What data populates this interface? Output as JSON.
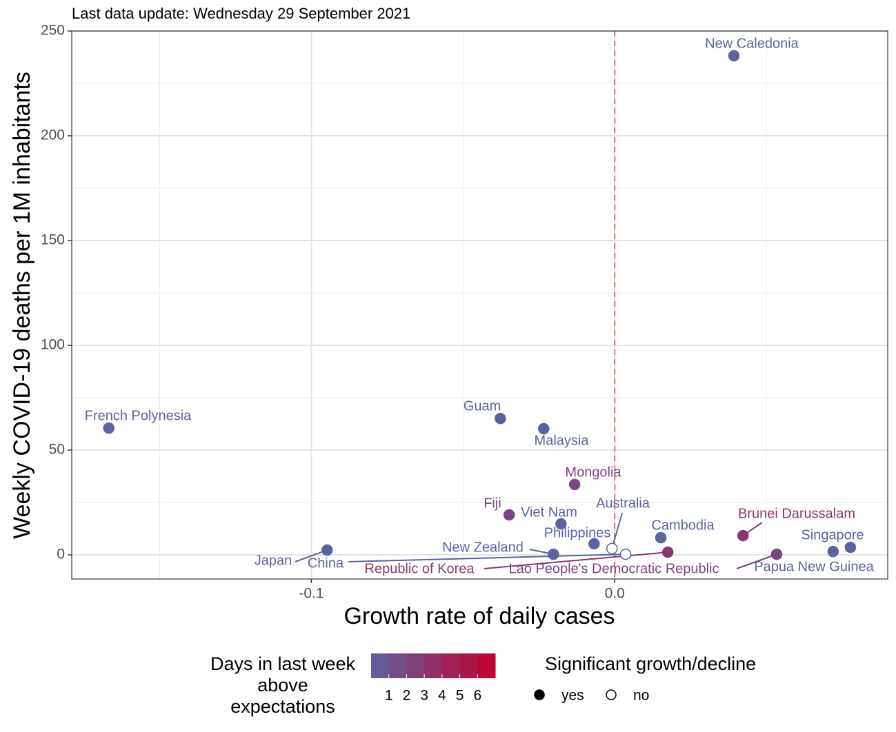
{
  "chart_data": {
    "type": "scatter",
    "title": "Last data update: Wednesday 29 September 2021",
    "x_label": "Growth rate of daily cases",
    "y_label": "Weekly COVID-19 deaths per 1M inhabitants",
    "xlim": [
      -0.179,
      0.09
    ],
    "ylim": [
      -11.5,
      250
    ],
    "xticks": [
      {
        "value": -0.1,
        "label": "-0.1"
      },
      {
        "value": 0,
        "label": "0.0"
      }
    ],
    "yticks": [
      0,
      50,
      100,
      150,
      200,
      250
    ],
    "grid": true,
    "reference_line": {
      "x": 0,
      "color": "#e8706b"
    },
    "points": {
      "labels": [
        "New Caledonia",
        "French Polynesia",
        "Guam",
        "Malaysia",
        "Mongolia",
        "Fiji",
        "Viet Nam",
        "Philippines",
        "Australia",
        "Cambodia",
        "Brunei Darussalam",
        "Singapore",
        "Papua New Guinea",
        "Lao People's Democratic Republic",
        "Republic of Korea",
        "New Zealand",
        "Japan",
        "China"
      ],
      "x": [
        0.0393,
        -0.1668,
        -0.0377,
        -0.0234,
        -0.0132,
        -0.0348,
        -0.0177,
        -0.0068,
        -0.0009,
        0.0152,
        0.0423,
        0.0777,
        0.072,
        0.0534,
        0.0175,
        -0.0202,
        -0.0948,
        0.0036
      ],
      "values": [
        238.2,
        60.5,
        65.1,
        60.2,
        33.6,
        19.1,
        14.8,
        5.3,
        3.0,
        8.2,
        9.2,
        3.6,
        1.6,
        0.3,
        1.3,
        0.3,
        2.3,
        0.3
      ],
      "days": [
        0,
        0,
        0,
        0,
        2,
        2,
        0,
        0,
        0,
        0,
        3,
        0,
        0,
        2,
        3,
        0,
        0,
        0
      ],
      "significant": [
        true,
        true,
        true,
        true,
        true,
        true,
        true,
        true,
        false,
        true,
        true,
        true,
        true,
        true,
        true,
        true,
        true,
        false
      ]
    },
    "color_legend": {
      "title": [
        "Days in last week",
        "above",
        "expectations"
      ],
      "range": [
        0,
        7
      ],
      "ticks": [
        1,
        2,
        3,
        4,
        5,
        6
      ],
      "low_color": "#5b62a0",
      "high_color": "#c4002f"
    },
    "shape_legend": {
      "title": "Significant growth/decline",
      "entries": [
        "yes",
        "no"
      ]
    }
  }
}
